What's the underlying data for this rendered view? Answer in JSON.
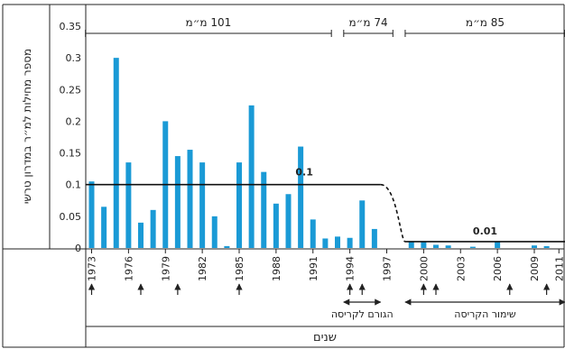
{
  "chart_data": {
    "type": "bar",
    "ylabel": "מספר מחילות למ״ר במדרון טרשי",
    "xlabel": "שנים",
    "ylim": [
      0,
      0.35
    ],
    "yticks": [
      "0",
      "0.05",
      "0.1",
      "0.15",
      "0.2",
      "0.25",
      "0.3",
      "0.35"
    ],
    "xtick_labels": [
      "1973",
      "1976",
      "1979",
      "1982",
      "1985",
      "1988",
      "1991",
      "1994",
      "1997",
      "2000",
      "2003",
      "2006",
      "2009",
      "2011"
    ],
    "bar_color": "#1a9ad6",
    "bars": [
      {
        "year": 1973,
        "value": 0.105
      },
      {
        "year": 1974,
        "value": 0.065
      },
      {
        "year": 1975,
        "value": 0.3
      },
      {
        "year": 1976,
        "value": 0.135
      },
      {
        "year": 1977,
        "value": 0.04
      },
      {
        "year": 1978,
        "value": 0.06
      },
      {
        "year": 1979,
        "value": 0.2
      },
      {
        "year": 1980,
        "value": 0.145
      },
      {
        "year": 1981,
        "value": 0.155
      },
      {
        "year": 1982,
        "value": 0.135
      },
      {
        "year": 1983,
        "value": 0.05
      },
      {
        "year": 1984,
        "value": 0.003
      },
      {
        "year": 1985,
        "value": 0.135
      },
      {
        "year": 1986,
        "value": 0.225
      },
      {
        "year": 1987,
        "value": 0.12
      },
      {
        "year": 1988,
        "value": 0.07
      },
      {
        "year": 1989,
        "value": 0.085
      },
      {
        "year": 1990,
        "value": 0.16
      },
      {
        "year": 1991,
        "value": 0.045
      },
      {
        "year": 1992,
        "value": 0.015
      },
      {
        "year": 1993,
        "value": 0.018
      },
      {
        "year": 1994,
        "value": 0.016
      },
      {
        "year": 1995,
        "value": 0.075
      },
      {
        "year": 1996,
        "value": 0.03
      },
      {
        "year": 1999,
        "value": 0.01
      },
      {
        "year": 2000,
        "value": 0.01
      },
      {
        "year": 2001,
        "value": 0.005
      },
      {
        "year": 2002,
        "value": 0.004
      },
      {
        "year": 2004,
        "value": 0.002
      },
      {
        "year": 2006,
        "value": 0.01
      },
      {
        "year": 2009,
        "value": 0.004
      },
      {
        "year": 2010,
        "value": 0.003
      }
    ],
    "mean_lines": [
      {
        "from": 1972.5,
        "to": 1996.5,
        "value": 0.1,
        "label": "0.1"
      },
      {
        "from": 1998.5,
        "to": 2011.5,
        "value": 0.01,
        "label": "0.01"
      }
    ],
    "transition": {
      "from_year": 1996.5,
      "to_year": 1998.5
    },
    "rainfall_periods": [
      {
        "from": 1972.5,
        "to": 1992.5,
        "label": "101 מ״מ"
      },
      {
        "from": 1993.5,
        "to": 1997.5,
        "label": "74 מ״מ"
      },
      {
        "from": 1998.5,
        "to": 2011.5,
        "label": "85 מ״מ"
      }
    ],
    "event_arrow_years": [
      1973,
      1977,
      1980,
      1985,
      1994,
      1995,
      2000,
      2001,
      2007,
      2010
    ],
    "annotations": [
      {
        "label": "הגורם לקריסה",
        "from": 1993.5,
        "to": 1996.5
      },
      {
        "label": "שימור הקריסה",
        "from": 1998.5,
        "to": 2011.5
      }
    ]
  }
}
